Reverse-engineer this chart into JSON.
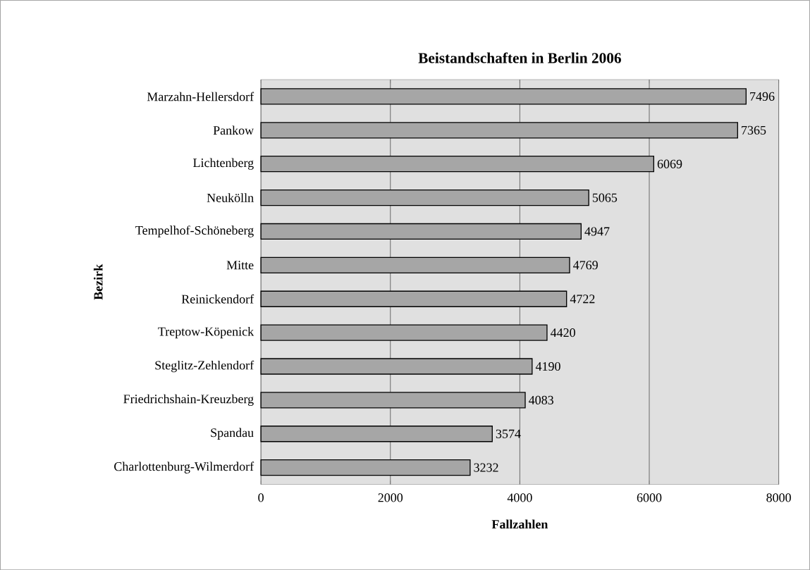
{
  "chart_data": {
    "type": "bar",
    "orientation": "horizontal",
    "title": "Beistandschaften in Berlin 2006",
    "xlabel": "Fallzahlen",
    "ylabel": "Bezirk",
    "categories": [
      "Marzahn-Hellersdorf",
      "Pankow",
      "Lichtenberg",
      "Neukölln",
      "Tempelhof-Schöneberg",
      "Mitte",
      "Reinickendorf",
      "Treptow-Köpenick",
      "Steglitz-Zehlendorf",
      "Friedrichshain-Kreuzberg",
      "Spandau",
      "Charlottenburg-Wilmerdorf"
    ],
    "values": [
      7496,
      7365,
      6069,
      5065,
      4947,
      4769,
      4722,
      4420,
      4190,
      4083,
      3574,
      3232
    ],
    "color": "#a6a6a6",
    "xlim": [
      0,
      8000
    ],
    "xticks": [
      0,
      2000,
      4000,
      6000,
      8000
    ],
    "grid": "x",
    "data_labels": true
  }
}
